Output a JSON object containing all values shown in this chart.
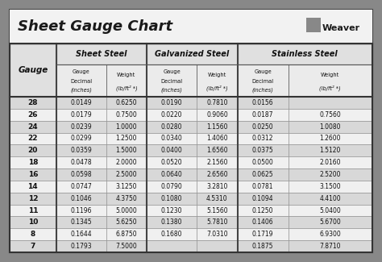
{
  "title": "Sheet Gauge Chart",
  "bg_outer": "#888888",
  "bg_white": "#ffffff",
  "bg_header": "#e0e0e0",
  "bg_row_dark": "#d8d8d8",
  "bg_row_light": "#f0f0f0",
  "gauges": [
    28,
    26,
    24,
    22,
    20,
    18,
    16,
    14,
    12,
    11,
    10,
    8,
    7
  ],
  "sheet_steel_dec": [
    "0.0149",
    "0.0179",
    "0.0239",
    "0.0299",
    "0.0359",
    "0.0478",
    "0.0598",
    "0.0747",
    "0.1046",
    "0.1196",
    "0.1345",
    "0.1644",
    "0.1793"
  ],
  "sheet_steel_wt": [
    "0.6250",
    "0.7500",
    "1.0000",
    "1.2500",
    "1.5000",
    "2.0000",
    "2.5000",
    "3.1250",
    "4.3750",
    "5.0000",
    "5.6250",
    "6.8750",
    "7.5000"
  ],
  "galv_dec": [
    "0.0190",
    "0.0220",
    "0.0280",
    "0.0340",
    "0.0400",
    "0.0520",
    "0.0640",
    "0.0790",
    "0.1080",
    "0.1230",
    "0.1380",
    "0.1680",
    ""
  ],
  "galv_wt": [
    "0.7810",
    "0.9060",
    "1.1560",
    "1.4060",
    "1.6560",
    "2.1560",
    "2.6560",
    "3.2810",
    "4.5310",
    "5.1560",
    "5.7810",
    "7.0310",
    ""
  ],
  "stain_dec": [
    "0.0156",
    "0.0187",
    "0.0250",
    "0.0312",
    "0.0375",
    "0.0500",
    "0.0625",
    "0.0781",
    "0.1094",
    "0.1250",
    "0.1406",
    "0.1719",
    "0.1875"
  ],
  "stain_wt": [
    "",
    "0.7560",
    "1.0080",
    "1.2600",
    "1.5120",
    "2.0160",
    "2.5200",
    "3.1500",
    "4.4100",
    "5.0400",
    "5.6700",
    "6.9300",
    "7.8710"
  ]
}
